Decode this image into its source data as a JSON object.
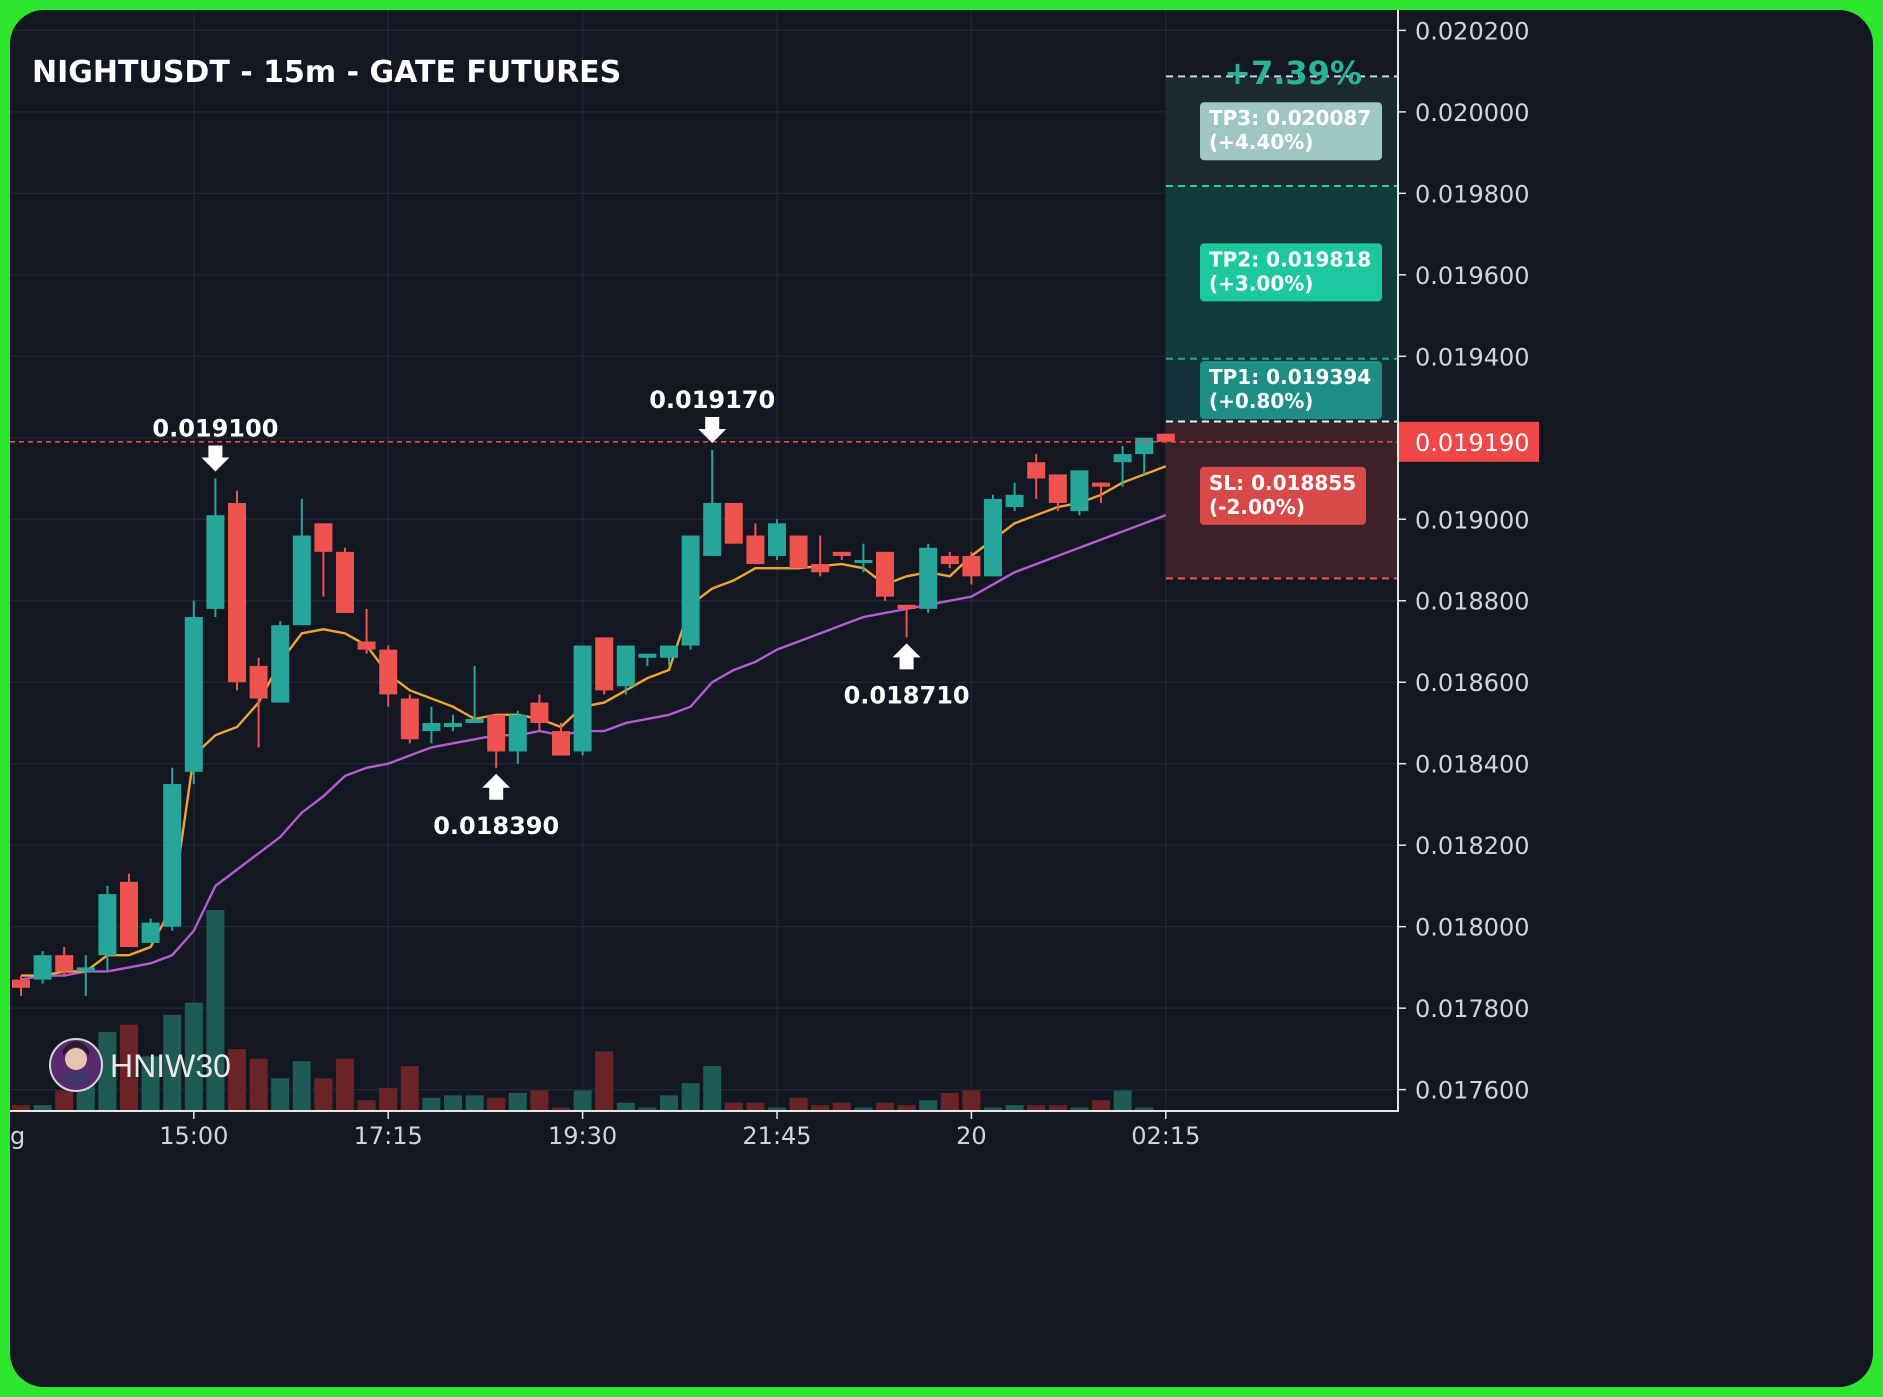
{
  "colors": {
    "background": "#131722",
    "frame": "#2ee62e",
    "grid": "#232836",
    "text": "#d1d4dc",
    "up": "#26a69a",
    "down": "#ef5350",
    "ema_fast": "#f0a532",
    "ema_slow": "#b45bd4",
    "tp3_label": "#9fc6c4",
    "tp2_label": "#1dc8a0",
    "tp1_label": "#1f8f86",
    "sl_label": "#d84a4a",
    "current_price_tag": "#f04848",
    "pnl_text": "#2bb39a"
  },
  "chart_data": {
    "type": "candlestick",
    "title": "NIGHTUSDT - 15m - GATE FUTURES",
    "pnl_label": "+7.39%",
    "watermark": "HNIW30",
    "avatar_icon": "trader-avatar-icon",
    "grid": true,
    "ylim": [
      0.01755,
      0.02025
    ],
    "y_ticks": [
      "0.017600",
      "0.017800",
      "0.018000",
      "0.018200",
      "0.018400",
      "0.018600",
      "0.018800",
      "0.019000",
      "0.019200",
      "0.019400",
      "0.019600",
      "0.019800",
      "0.020000",
      "0.020200"
    ],
    "x_ticks": [
      {
        "index": 8,
        "label": "15:00"
      },
      {
        "index": 17,
        "label": "17:15"
      },
      {
        "index": 26,
        "label": "19:30"
      },
      {
        "index": 35,
        "label": "21:45"
      },
      {
        "index": 44,
        "label": "20"
      },
      {
        "index": 53,
        "label": "02:15"
      }
    ],
    "x_edge_label": "g",
    "current_price": {
      "value": 0.01919,
      "label": "0.019190"
    },
    "candles": [
      {
        "o": 0.01787,
        "h": 0.01788,
        "l": 0.01783,
        "c": 0.01785,
        "v": 2
      },
      {
        "o": 0.01787,
        "h": 0.01794,
        "l": 0.01786,
        "c": 0.01793,
        "v": 2
      },
      {
        "o": 0.01793,
        "h": 0.01795,
        "l": 0.01788,
        "c": 0.01789,
        "v": 8
      },
      {
        "o": 0.01789,
        "h": 0.01793,
        "l": 0.01783,
        "c": 0.0179,
        "v": 12
      },
      {
        "o": 0.01793,
        "h": 0.0181,
        "l": 0.01789,
        "c": 0.01808,
        "v": 32
      },
      {
        "o": 0.01811,
        "h": 0.01813,
        "l": 0.01795,
        "c": 0.01795,
        "v": 35
      },
      {
        "o": 0.01796,
        "h": 0.01802,
        "l": 0.01796,
        "c": 0.01801,
        "v": 22
      },
      {
        "o": 0.018,
        "h": 0.01839,
        "l": 0.01799,
        "c": 0.01835,
        "v": 39
      },
      {
        "o": 0.01838,
        "h": 0.0188,
        "l": 0.01835,
        "c": 0.01876,
        "v": 44
      },
      {
        "o": 0.01878,
        "h": 0.0191,
        "l": 0.01876,
        "c": 0.01901,
        "v": 82
      },
      {
        "o": 0.01904,
        "h": 0.01907,
        "l": 0.01858,
        "c": 0.0186,
        "v": 25
      },
      {
        "o": 0.01864,
        "h": 0.01866,
        "l": 0.01844,
        "c": 0.01856,
        "v": 21
      },
      {
        "o": 0.01855,
        "h": 0.01875,
        "l": 0.01855,
        "c": 0.01874,
        "v": 13
      },
      {
        "o": 0.01874,
        "h": 0.01905,
        "l": 0.01874,
        "c": 0.01896,
        "v": 20
      },
      {
        "o": 0.01899,
        "h": 0.01899,
        "l": 0.01881,
        "c": 0.01892,
        "v": 13
      },
      {
        "o": 0.01892,
        "h": 0.01893,
        "l": 0.01877,
        "c": 0.01877,
        "v": 21
      },
      {
        "o": 0.0187,
        "h": 0.01878,
        "l": 0.01867,
        "c": 0.01868,
        "v": 4
      },
      {
        "o": 0.01868,
        "h": 0.01869,
        "l": 0.01854,
        "c": 0.01857,
        "v": 9
      },
      {
        "o": 0.01856,
        "h": 0.01857,
        "l": 0.01845,
        "c": 0.01846,
        "v": 18
      },
      {
        "o": 0.01848,
        "h": 0.01854,
        "l": 0.01845,
        "c": 0.0185,
        "v": 5
      },
      {
        "o": 0.01849,
        "h": 0.01852,
        "l": 0.01848,
        "c": 0.0185,
        "v": 6
      },
      {
        "o": 0.0185,
        "h": 0.01864,
        "l": 0.0185,
        "c": 0.01851,
        "v": 6
      },
      {
        "o": 0.01852,
        "h": 0.01852,
        "l": 0.01839,
        "c": 0.01843,
        "v": 5
      },
      {
        "o": 0.01843,
        "h": 0.01853,
        "l": 0.0184,
        "c": 0.01852,
        "v": 7
      },
      {
        "o": 0.01855,
        "h": 0.01857,
        "l": 0.01848,
        "c": 0.0185,
        "v": 8
      },
      {
        "o": 0.01848,
        "h": 0.0185,
        "l": 0.01842,
        "c": 0.01842,
        "v": 1
      },
      {
        "o": 0.01843,
        "h": 0.01869,
        "l": 0.01842,
        "c": 0.01869,
        "v": 8
      },
      {
        "o": 0.01871,
        "h": 0.01871,
        "l": 0.01857,
        "c": 0.01858,
        "v": 24
      },
      {
        "o": 0.01859,
        "h": 0.01869,
        "l": 0.01857,
        "c": 0.01869,
        "v": 3
      },
      {
        "o": 0.01866,
        "h": 0.01867,
        "l": 0.01864,
        "c": 0.01867,
        "v": 1
      },
      {
        "o": 0.01866,
        "h": 0.01869,
        "l": 0.01864,
        "c": 0.01869,
        "v": 6
      },
      {
        "o": 0.01869,
        "h": 0.01896,
        "l": 0.01868,
        "c": 0.01896,
        "v": 11
      },
      {
        "o": 0.01891,
        "h": 0.01917,
        "l": 0.01891,
        "c": 0.01904,
        "v": 18
      },
      {
        "o": 0.01904,
        "h": 0.01904,
        "l": 0.01894,
        "c": 0.01894,
        "v": 3
      },
      {
        "o": 0.01896,
        "h": 0.01899,
        "l": 0.01889,
        "c": 0.01889,
        "v": 3
      },
      {
        "o": 0.01891,
        "h": 0.019,
        "l": 0.0189,
        "c": 0.01899,
        "v": 1
      },
      {
        "o": 0.01896,
        "h": 0.01896,
        "l": 0.01888,
        "c": 0.01888,
        "v": 5
      },
      {
        "o": 0.01889,
        "h": 0.01896,
        "l": 0.01886,
        "c": 0.01887,
        "v": 2
      },
      {
        "o": 0.01892,
        "h": 0.01892,
        "l": 0.0189,
        "c": 0.01891,
        "v": 3
      },
      {
        "o": 0.0189,
        "h": 0.01894,
        "l": 0.01887,
        "c": 0.0189,
        "v": 1
      },
      {
        "o": 0.01892,
        "h": 0.01892,
        "l": 0.0188,
        "c": 0.01881,
        "v": 3
      },
      {
        "o": 0.01879,
        "h": 0.01879,
        "l": 0.01871,
        "c": 0.01878,
        "v": 2
      },
      {
        "o": 0.01878,
        "h": 0.01894,
        "l": 0.01877,
        "c": 0.01893,
        "v": 4
      },
      {
        "o": 0.01891,
        "h": 0.01892,
        "l": 0.01888,
        "c": 0.01889,
        "v": 7
      },
      {
        "o": 0.01891,
        "h": 0.01892,
        "l": 0.01884,
        "c": 0.01886,
        "v": 8
      },
      {
        "o": 0.01886,
        "h": 0.01906,
        "l": 0.01886,
        "c": 0.01905,
        "v": 1
      },
      {
        "o": 0.01903,
        "h": 0.01909,
        "l": 0.01902,
        "c": 0.01906,
        "v": 2
      },
      {
        "o": 0.01914,
        "h": 0.01916,
        "l": 0.01905,
        "c": 0.0191,
        "v": 2
      },
      {
        "o": 0.01911,
        "h": 0.01911,
        "l": 0.01902,
        "c": 0.01904,
        "v": 2
      },
      {
        "o": 0.01902,
        "h": 0.01911,
        "l": 0.01901,
        "c": 0.01912,
        "v": 1
      },
      {
        "o": 0.01909,
        "h": 0.01909,
        "l": 0.01904,
        "c": 0.01908,
        "v": 4
      },
      {
        "o": 0.01914,
        "h": 0.01918,
        "l": 0.01908,
        "c": 0.01916,
        "v": 8
      },
      {
        "o": 0.01916,
        "h": 0.0192,
        "l": 0.01911,
        "c": 0.0192,
        "v": 1
      },
      {
        "o": 0.01921,
        "h": 0.01921,
        "l": 0.01919,
        "c": 0.01919,
        "v": 0
      }
    ],
    "ema_fast": [
      0.01788,
      0.01788,
      0.01789,
      0.01789,
      0.01793,
      0.01793,
      0.01795,
      0.01805,
      0.01842,
      0.01847,
      0.01849,
      0.01855,
      0.01865,
      0.01872,
      0.01873,
      0.01872,
      0.01869,
      0.01862,
      0.01858,
      0.01856,
      0.01854,
      0.01851,
      0.01852,
      0.01852,
      0.01851,
      0.01849,
      0.01854,
      0.01855,
      0.01858,
      0.01861,
      0.01863,
      0.01879,
      0.01883,
      0.01885,
      0.01888,
      0.01888,
      0.01888,
      0.018885,
      0.01889,
      0.01888,
      0.01884,
      0.01886,
      0.01887,
      0.01886,
      0.01891,
      0.01895,
      0.01899,
      0.01901,
      0.01903,
      0.01904,
      0.01906,
      0.01909,
      0.01911,
      0.01913
    ],
    "ema_slow": [
      0.01787,
      0.01788,
      0.01788,
      0.01789,
      0.01789,
      0.0179,
      0.01791,
      0.01793,
      0.01799,
      0.0181,
      0.01814,
      0.01818,
      0.01822,
      0.01828,
      0.01832,
      0.01837,
      0.01839,
      0.0184,
      0.01842,
      0.01844,
      0.01845,
      0.01846,
      0.01847,
      0.01847,
      0.01848,
      0.01847,
      0.01848,
      0.01848,
      0.0185,
      0.01851,
      0.01852,
      0.01854,
      0.0186,
      0.01863,
      0.01865,
      0.01868,
      0.0187,
      0.01872,
      0.01874,
      0.01876,
      0.01877,
      0.01878,
      0.01879,
      0.0188,
      0.01881,
      0.01884,
      0.01887,
      0.01889,
      0.01891,
      0.01893,
      0.01895,
      0.01897,
      0.01899,
      0.01901
    ],
    "annotations": [
      {
        "type": "high",
        "index": 9,
        "label": "0.019100"
      },
      {
        "type": "low",
        "index": 22,
        "label": "0.018390"
      },
      {
        "type": "high",
        "index": 32,
        "label": "0.019170"
      },
      {
        "type": "low",
        "index": 41,
        "label": "0.018710"
      }
    ],
    "targets": [
      {
        "name": "TP3",
        "price": 0.020087,
        "text": "TP3: 0.020087",
        "pct": "(+4.40%)"
      },
      {
        "name": "TP2",
        "price": 0.019818,
        "text": "TP2: 0.019818",
        "pct": "(+3.00%)"
      },
      {
        "name": "TP1",
        "price": 0.019394,
        "text": "TP1: 0.019394",
        "pct": "(+0.80%)"
      }
    ],
    "entry": {
      "price": 0.01924
    },
    "stop_loss": {
      "name": "SL",
      "price": 0.018855,
      "text": "SL: 0.018855",
      "pct": "(-2.00%)"
    }
  }
}
